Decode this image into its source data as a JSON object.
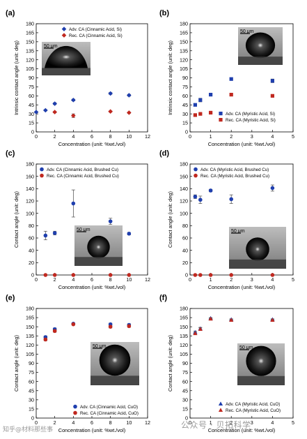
{
  "watermark": {
    "left": "知乎@材料那些事",
    "right": "公众号 · 贝拓科学"
  },
  "inset_scale": "50 μm",
  "colors": {
    "adv": "#1f3fae",
    "rec": "#c0281f",
    "axis": "#000000"
  },
  "chart_data": [
    {
      "panel": "(a)",
      "type": "scatter",
      "xlabel": "Concentration (unit: %wt./vol)",
      "ylabel": "Intrinsic contact angle (unit: deg)",
      "xlim": [
        0,
        12
      ],
      "xticks": [
        0,
        2,
        4,
        6,
        8,
        10,
        12
      ],
      "ylim": [
        0,
        180
      ],
      "yticks": [
        0,
        15,
        30,
        45,
        60,
        75,
        90,
        105,
        120,
        135,
        150,
        165,
        180
      ],
      "legend_position": "top-right",
      "marker": "diamond",
      "series": [
        {
          "name": "Adv. CA (Cinnamic Acid, Si)",
          "color": "#1f3fae",
          "x": [
            0,
            1,
            2,
            4,
            8,
            10
          ],
          "y": [
            33,
            36,
            47,
            53,
            64,
            61
          ],
          "err": [
            1,
            1,
            1.5,
            1.5,
            1.5,
            1.5
          ]
        },
        {
          "name": "Rec. CA (Cinnamic Acid, Si)",
          "color": "#c0281f",
          "x": [
            2,
            4,
            8,
            10
          ],
          "y": [
            33,
            27,
            34,
            32
          ],
          "err": [
            1,
            3,
            1,
            1
          ]
        }
      ]
    },
    {
      "panel": "(b)",
      "type": "scatter",
      "xlabel": "Concentration (unit: %wt./vol)",
      "ylabel": "Intrinsic contact angle (unit: deg)",
      "xlim": [
        0,
        5
      ],
      "xticks": [
        0,
        1,
        2,
        3,
        4,
        5
      ],
      "ylim": [
        0,
        180
      ],
      "yticks": [
        0,
        15,
        30,
        45,
        60,
        75,
        90,
        105,
        120,
        135,
        150,
        165,
        180
      ],
      "legend_position": "bottom-right",
      "marker": "square",
      "series": [
        {
          "name": "Adv. CA (Myristic Acid, Si)",
          "color": "#1f3fae",
          "x": [
            0.25,
            0.5,
            1,
            2,
            4
          ],
          "y": [
            45,
            53,
            62,
            88,
            85
          ],
          "err": [
            2,
            3,
            1.5,
            1.5,
            3
          ]
        },
        {
          "name": "Rec. CA (Myristic Acid, Si)",
          "color": "#c0281f",
          "x": [
            0.25,
            0.5,
            1,
            2,
            4
          ],
          "y": [
            28,
            30,
            32,
            62,
            60
          ],
          "err": [
            1,
            1,
            1,
            1.5,
            1.5
          ]
        }
      ]
    },
    {
      "panel": "(c)",
      "type": "scatter",
      "xlabel": "Concentration (unit: %wt./vol)",
      "ylabel": "Contact angle (unit: deg)",
      "xlim": [
        0,
        12
      ],
      "xticks": [
        0,
        2,
        4,
        6,
        8,
        10,
        12
      ],
      "ylim": [
        0,
        180
      ],
      "yticks": [
        0,
        20,
        40,
        60,
        80,
        100,
        120,
        140,
        160,
        180
      ],
      "legend_position": "top-left",
      "marker": "circle",
      "series": [
        {
          "name": "Adv. CA (Cinnamic Acid, Brushed Cu)",
          "color": "#1f3fae",
          "x": [
            1,
            2,
            4,
            8,
            10
          ],
          "y": [
            64,
            68,
            116,
            87,
            67
          ],
          "err": [
            7,
            3,
            22,
            5,
            2
          ]
        },
        {
          "name": "Rec. CA (Cinnamic Acid, Brushed Cu)",
          "color": "#c0281f",
          "x": [
            1,
            2,
            4,
            8,
            10
          ],
          "y": [
            0,
            0,
            0,
            0,
            0
          ],
          "err": [
            0,
            0,
            0,
            0,
            0
          ]
        }
      ]
    },
    {
      "panel": "(d)",
      "type": "scatter",
      "xlabel": "Concentration (unit: %wt./vol)",
      "ylabel": "Contact angle (unit: deg)",
      "xlim": [
        0,
        5
      ],
      "xticks": [
        0,
        1,
        2,
        3,
        4,
        5
      ],
      "ylim": [
        0,
        180
      ],
      "yticks": [
        0,
        20,
        40,
        60,
        80,
        100,
        120,
        140,
        160,
        180
      ],
      "legend_position": "top-left",
      "marker": "circle",
      "series": [
        {
          "name": "Adv. CA (Myristic Acid, Brushed Cu)",
          "color": "#1f3fae",
          "x": [
            0.25,
            0.5,
            1,
            2,
            4
          ],
          "y": [
            127,
            122,
            137,
            123,
            141
          ],
          "err": [
            3,
            6,
            2,
            7,
            5
          ]
        },
        {
          "name": "Rec. CA (Myristic Acid, Brushed Cu)",
          "color": "#c0281f",
          "x": [
            0.25,
            0.5,
            1,
            2,
            4
          ],
          "y": [
            0,
            0,
            0,
            0,
            0
          ],
          "err": [
            0,
            0,
            0,
            0,
            0
          ]
        }
      ]
    },
    {
      "panel": "(e)",
      "type": "scatter",
      "xlabel": "Concentration (unit: %wt./vol)",
      "ylabel": "Contact angle (unit: deg)",
      "xlim": [
        0,
        12
      ],
      "xticks": [
        0,
        2,
        4,
        6,
        8,
        10,
        12
      ],
      "ylim": [
        0,
        180
      ],
      "yticks": [
        0,
        15,
        30,
        45,
        60,
        75,
        90,
        105,
        120,
        135,
        150,
        165,
        180
      ],
      "legend_position": "bottom-right",
      "marker": "circle",
      "series": [
        {
          "name": "Adv. CA (Cinnamic Acid, CuO)",
          "color": "#1f3fae",
          "x": [
            1,
            2,
            4,
            8,
            10
          ],
          "y": [
            133,
            146,
            155,
            154,
            153
          ],
          "err": [
            2,
            2,
            1,
            2,
            2
          ]
        },
        {
          "name": "Rec. CA (Cinnamic Acid, CuO)",
          "color": "#c0281f",
          "x": [
            1,
            2,
            4,
            8,
            10
          ],
          "y": [
            129,
            143,
            154,
            150,
            151
          ],
          "err": [
            2,
            2,
            1,
            2,
            2
          ]
        }
      ]
    },
    {
      "panel": "(f)",
      "type": "scatter",
      "xlabel": "Concentration (unit: %wt./vol)",
      "ylabel": "Contact angle (unit: deg)",
      "xlim": [
        0,
        5
      ],
      "xticks": [
        0,
        1,
        2,
        3,
        4,
        5
      ],
      "ylim": [
        0,
        180
      ],
      "yticks": [
        0,
        15,
        30,
        45,
        60,
        75,
        90,
        105,
        120,
        135,
        150,
        165,
        180
      ],
      "legend_position": "bottom-right",
      "marker": "triangle",
      "series": [
        {
          "name": "Adv. CA (Myristic Acid, CuO)",
          "color": "#1f3fae",
          "x": [
            0.25,
            0.5,
            1,
            2,
            4
          ],
          "y": [
            141,
            147,
            164,
            162,
            162
          ],
          "err": [
            2,
            2,
            1,
            1,
            1
          ]
        },
        {
          "name": "Rec. CA (Myristic Acid, CuO)",
          "color": "#c0281f",
          "x": [
            0.25,
            0.5,
            1,
            2,
            4
          ],
          "y": [
            139,
            146,
            163,
            161,
            161
          ],
          "err": [
            2,
            2,
            1,
            1,
            1
          ]
        }
      ]
    }
  ]
}
